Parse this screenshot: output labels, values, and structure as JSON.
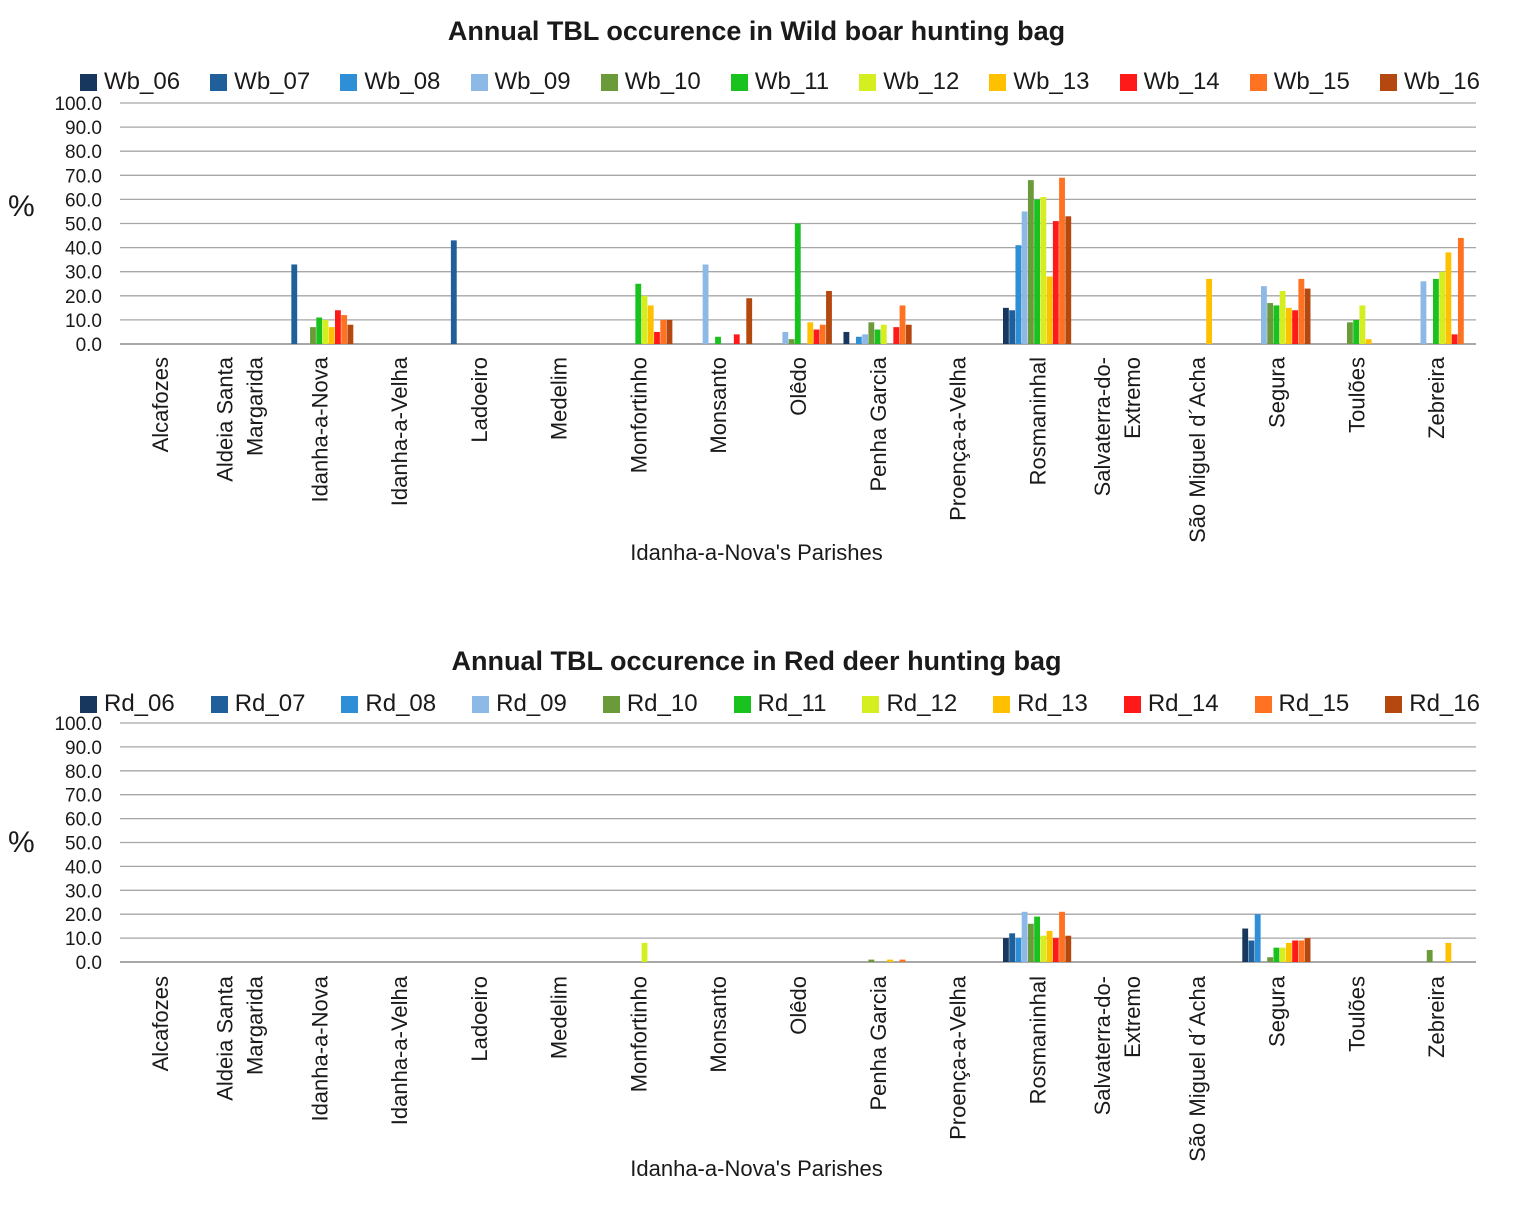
{
  "chart_data": [
    {
      "type": "bar",
      "title": "Annual  TBL occurence in Wild boar hunting bag",
      "xlabel": "Idanha-a-Nova's Parishes",
      "ylabel": "%",
      "ylim": [
        0,
        100
      ],
      "yticks": [
        "0.0",
        "10.0",
        "20.0",
        "30.0",
        "40.0",
        "50.0",
        "60.0",
        "70.0",
        "80.0",
        "90.0",
        "100.0"
      ],
      "grid": true,
      "legend_position": "top",
      "categories": [
        [
          "Alcafozes"
        ],
        [
          "Aldeia Santa",
          "Margarida"
        ],
        [
          "Idanha-a-Nova"
        ],
        [
          "Idanha-a-Velha"
        ],
        [
          "Ladoeiro"
        ],
        [
          "Medelim"
        ],
        [
          "Monfortinho"
        ],
        [
          "Monsanto"
        ],
        [
          "Olêdo"
        ],
        [
          "Penha Garcia"
        ],
        [
          "Proença-a-Velha"
        ],
        [
          "Rosmaninhal"
        ],
        [
          "Salvaterra-do-",
          "Extremo"
        ],
        [
          "São Miguel d´Acha"
        ],
        [
          "Segura"
        ],
        [
          "Toulões"
        ],
        [
          "Zebreira"
        ]
      ],
      "series": [
        {
          "name": "Wb_06",
          "color": "#17375e",
          "values": [
            0,
            0,
            0,
            0,
            0,
            0,
            0,
            0,
            0,
            5,
            0,
            15,
            0,
            0,
            0,
            0,
            0
          ]
        },
        {
          "name": "Wb_07",
          "color": "#1f5f9a",
          "values": [
            0,
            0,
            33,
            0,
            43,
            0,
            0,
            0,
            0,
            0,
            0,
            14,
            0,
            0,
            0,
            0,
            0
          ]
        },
        {
          "name": "Wb_08",
          "color": "#2e8fd6",
          "values": [
            0,
            0,
            0,
            0,
            0,
            0,
            0,
            0,
            0,
            3,
            0,
            41,
            0,
            0,
            0,
            0,
            0
          ]
        },
        {
          "name": "Wb_09",
          "color": "#8db9e6",
          "values": [
            0,
            0,
            0,
            0,
            0,
            0,
            0,
            33,
            5,
            4,
            0,
            55,
            0,
            0,
            24,
            0,
            26
          ]
        },
        {
          "name": "Wb_10",
          "color": "#6a9a3a",
          "values": [
            0,
            0,
            7,
            0,
            0,
            0,
            0,
            0,
            2,
            9,
            0,
            68,
            0,
            0,
            17,
            9,
            0
          ]
        },
        {
          "name": "Wb_11",
          "color": "#19c21f",
          "values": [
            0,
            0,
            11,
            0,
            0,
            0,
            25,
            3,
            50,
            6,
            0,
            60,
            0,
            0,
            16,
            10,
            27
          ]
        },
        {
          "name": "Wb_12",
          "color": "#d4ee20",
          "values": [
            0,
            0,
            10,
            0,
            0,
            0,
            20,
            0,
            0,
            8,
            0,
            61,
            0,
            0,
            22,
            16,
            30
          ]
        },
        {
          "name": "Wb_13",
          "color": "#ffc000",
          "values": [
            0,
            0,
            7,
            0,
            0,
            0,
            16,
            0,
            9,
            0,
            0,
            28,
            0,
            27,
            15,
            2,
            38
          ]
        },
        {
          "name": "Wb_14",
          "color": "#ff1a1a",
          "values": [
            0,
            0,
            14,
            0,
            0,
            0,
            5,
            4,
            6,
            7,
            0,
            51,
            0,
            0,
            14,
            0,
            4
          ]
        },
        {
          "name": "Wb_15",
          "color": "#ff7222",
          "values": [
            0,
            0,
            12,
            0,
            0,
            0,
            10,
            0,
            8,
            16,
            0,
            69,
            0,
            0,
            27,
            0,
            44
          ]
        },
        {
          "name": "Wb_16",
          "color": "#b5480f",
          "values": [
            0,
            0,
            8,
            0,
            0,
            0,
            10,
            19,
            22,
            8,
            0,
            53,
            0,
            0,
            23,
            0,
            0
          ]
        }
      ]
    },
    {
      "type": "bar",
      "title": "Annual  TBL occurence in Red deer hunting bag",
      "xlabel": "Idanha-a-Nova's Parishes",
      "ylabel": "%",
      "ylim": [
        0,
        100
      ],
      "yticks": [
        "0.0",
        "10.0",
        "20.0",
        "30.0",
        "40.0",
        "50.0",
        "60.0",
        "70.0",
        "80.0",
        "90.0",
        "100.0"
      ],
      "grid": true,
      "legend_position": "top",
      "categories": [
        [
          "Alcafozes"
        ],
        [
          "Aldeia Santa",
          "Margarida"
        ],
        [
          "Idanha-a-Nova"
        ],
        [
          "Idanha-a-Velha"
        ],
        [
          "Ladoeiro"
        ],
        [
          "Medelim"
        ],
        [
          "Monfortinho"
        ],
        [
          "Monsanto"
        ],
        [
          "Olêdo"
        ],
        [
          "Penha Garcia"
        ],
        [
          "Proença-a-Velha"
        ],
        [
          "Rosmaninhal"
        ],
        [
          "Salvaterra-do-",
          "Extremo"
        ],
        [
          "São Miguel d´Acha"
        ],
        [
          "Segura"
        ],
        [
          "Toulões"
        ],
        [
          "Zebreira"
        ]
      ],
      "series": [
        {
          "name": "Rd_06",
          "color": "#17375e",
          "values": [
            0,
            0,
            0,
            0,
            0,
            0,
            0,
            0,
            0,
            0,
            0,
            10,
            0,
            0,
            14,
            0,
            0
          ]
        },
        {
          "name": "Rd_07",
          "color": "#1f5f9a",
          "values": [
            0,
            0,
            0,
            0,
            0,
            0,
            0,
            0,
            0,
            0,
            0,
            12,
            0,
            0,
            9,
            0,
            0
          ]
        },
        {
          "name": "Rd_08",
          "color": "#2e8fd6",
          "values": [
            0,
            0,
            0,
            0,
            0,
            0,
            0,
            0,
            0,
            0,
            0,
            10,
            0,
            0,
            20,
            0,
            0
          ]
        },
        {
          "name": "Rd_09",
          "color": "#8db9e6",
          "values": [
            0,
            0,
            0,
            0,
            0,
            0,
            0,
            0,
            0,
            0,
            0,
            21,
            0,
            0,
            0,
            0,
            0
          ]
        },
        {
          "name": "Rd_10",
          "color": "#6a9a3a",
          "values": [
            0,
            0,
            0,
            0,
            0,
            0,
            0,
            0,
            0,
            1,
            0,
            16,
            0,
            0,
            2,
            0,
            5
          ]
        },
        {
          "name": "Rd_11",
          "color": "#19c21f",
          "values": [
            0,
            0,
            0,
            0,
            0,
            0,
            0,
            0,
            0,
            0,
            0,
            19,
            0,
            0,
            6,
            0,
            0
          ]
        },
        {
          "name": "Rd_12",
          "color": "#d4ee20",
          "values": [
            0,
            0,
            0,
            0,
            0,
            0,
            8,
            0,
            0,
            0,
            0,
            11,
            0,
            0,
            6,
            0,
            0
          ]
        },
        {
          "name": "Rd_13",
          "color": "#ffc000",
          "values": [
            0,
            0,
            0,
            0,
            0,
            0,
            0,
            0,
            0,
            1,
            0,
            13,
            0,
            0,
            8,
            0,
            8
          ]
        },
        {
          "name": "Rd_14",
          "color": "#ff1a1a",
          "values": [
            0,
            0,
            0,
            0,
            0,
            0,
            0,
            0,
            0,
            0,
            0,
            10,
            0,
            0,
            9,
            0,
            0
          ]
        },
        {
          "name": "Rd_15",
          "color": "#ff7222",
          "values": [
            0,
            0,
            0,
            0,
            0,
            0,
            0,
            0,
            0,
            1,
            0,
            21,
            0,
            0,
            9,
            0,
            0
          ]
        },
        {
          "name": "Rd_16",
          "color": "#b5480f",
          "values": [
            0,
            0,
            0,
            0,
            0,
            0,
            0,
            0,
            0,
            0,
            0,
            11,
            0,
            0,
            10,
            0,
            0
          ]
        }
      ]
    }
  ]
}
